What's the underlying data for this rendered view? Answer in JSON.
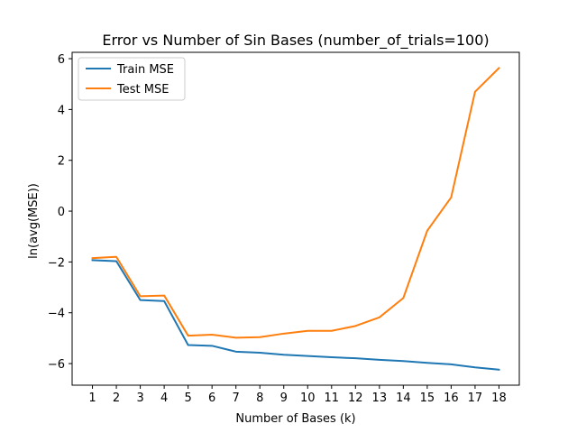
{
  "chart_data": {
    "type": "line",
    "title": "Error vs Number of Sin Bases (number_of_trials=100)",
    "xlabel": "Number of Bases (k)",
    "ylabel": "ln(avg(MSE))",
    "x": [
      1,
      2,
      3,
      4,
      5,
      6,
      7,
      8,
      9,
      10,
      11,
      12,
      13,
      14,
      15,
      16,
      17,
      18
    ],
    "xlim": [
      0.15,
      18.85
    ],
    "ylim": [
      -6.85,
      6.25
    ],
    "yticks": [
      -6,
      -4,
      -2,
      0,
      2,
      4,
      6
    ],
    "xticks": [
      1,
      2,
      3,
      4,
      5,
      6,
      7,
      8,
      9,
      10,
      11,
      12,
      13,
      14,
      15,
      16,
      17,
      18
    ],
    "grid": false,
    "legend_position": "upper-left",
    "series": [
      {
        "name": "Train MSE",
        "color": "#1f77b4",
        "values": [
          -1.93,
          -1.97,
          -3.5,
          -3.54,
          -5.27,
          -5.3,
          -5.53,
          -5.57,
          -5.65,
          -5.7,
          -5.75,
          -5.79,
          -5.85,
          -5.9,
          -5.97,
          -6.03,
          -6.15,
          -6.24
        ]
      },
      {
        "name": "Test MSE",
        "color": "#ff7f0e",
        "values": [
          -1.85,
          -1.8,
          -3.35,
          -3.32,
          -4.9,
          -4.86,
          -4.98,
          -4.96,
          -4.82,
          -4.71,
          -4.71,
          -4.52,
          -4.18,
          -3.42,
          -0.77,
          0.54,
          4.7,
          5.63
        ]
      }
    ]
  }
}
